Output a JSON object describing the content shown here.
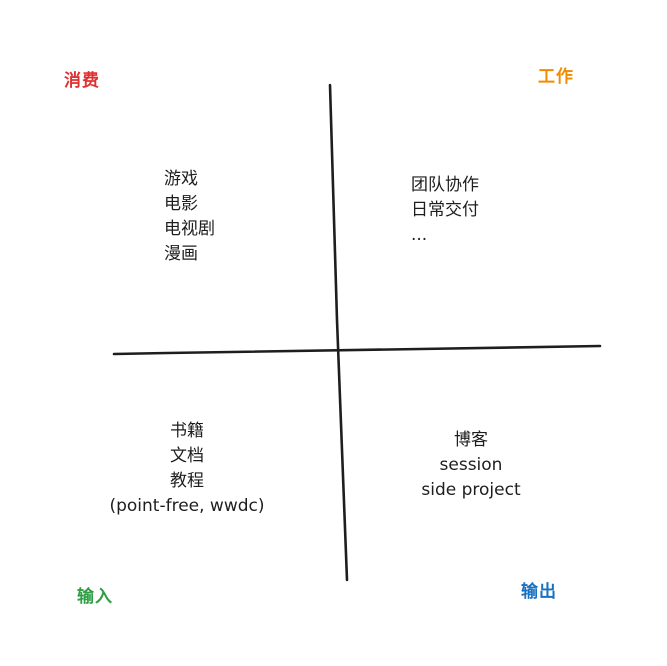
{
  "colors": {
    "stroke": "#1e1e1e",
    "consume": "#e03131",
    "work": "#f08c00",
    "input": "#2f9e44",
    "output": "#1971c2"
  },
  "corners": {
    "consume": "消费",
    "work": "工作",
    "input": "输入",
    "output": "输出"
  },
  "quadrants": {
    "consume": [
      "游戏",
      "电影",
      "电视剧",
      "漫画"
    ],
    "work": [
      "团队协作",
      "日常交付",
      "..."
    ],
    "input": [
      "书籍",
      "文档",
      "教程",
      "(point-free, wwdc)"
    ],
    "output": [
      "博客",
      "session",
      "side project"
    ]
  }
}
